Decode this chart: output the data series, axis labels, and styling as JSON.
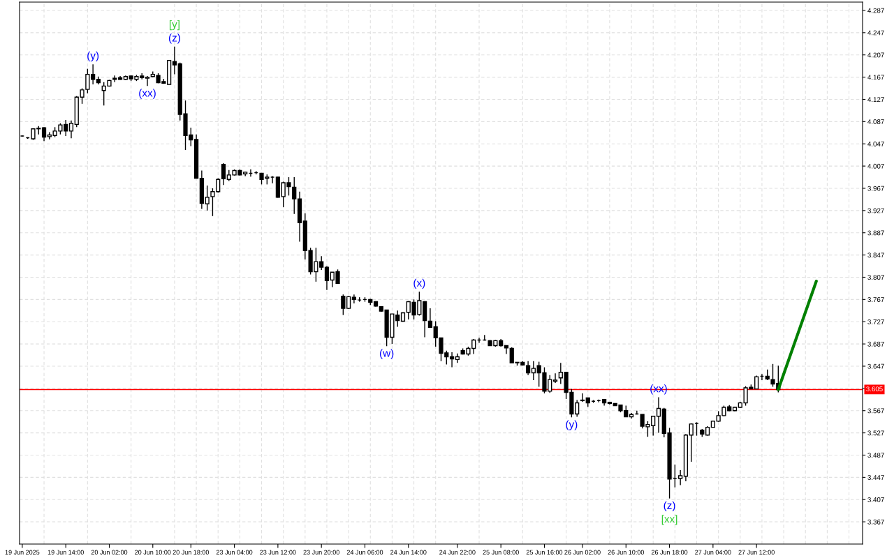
{
  "chart_data": {
    "type": "candlestick",
    "categories": [
      "19 Jun 2025",
      null,
      null,
      null,
      null,
      null,
      null,
      null,
      "19 Jun 14:00",
      null,
      null,
      null,
      null,
      null,
      null,
      null,
      "20 Jun 02:00",
      null,
      null,
      null,
      null,
      null,
      null,
      null,
      "20 Jun 10:00",
      null,
      null,
      null,
      null,
      null,
      null,
      "20 Jun 18:00",
      null,
      null,
      null,
      null,
      null,
      null,
      null,
      "23 Jun 04:00",
      null,
      null,
      null,
      null,
      null,
      null,
      null,
      "23 Jun 12:00",
      null,
      null,
      null,
      null,
      null,
      null,
      null,
      "23 Jun 20:00",
      null,
      null,
      null,
      null,
      null,
      null,
      null,
      "24 Jun 06:00",
      null,
      null,
      null,
      null,
      null,
      null,
      null,
      "24 Jun 14:00",
      null,
      null,
      null,
      null,
      null,
      null,
      null,
      null,
      "24 Jun 22:00",
      null,
      null,
      null,
      null,
      null,
      null,
      null,
      "25 Jun 08:00",
      null,
      null,
      null,
      null,
      null,
      null,
      null,
      "25 Jun 16:00",
      null,
      null,
      null,
      null,
      null,
      null,
      "26 Jun 02:00",
      null,
      null,
      null,
      null,
      null,
      null,
      null,
      "26 Jun 10:00",
      null,
      null,
      null,
      null,
      null,
      null,
      null,
      "26 Jun 18:00",
      null,
      null,
      null,
      null,
      null,
      null,
      null,
      "27 Jun 04:00",
      null,
      null,
      null,
      null,
      null,
      null,
      null,
      "27 Jun 12:00",
      null,
      null,
      null,
      null,
      null,
      null,
      null,
      null,
      null,
      null,
      null,
      null,
      null,
      null,
      null,
      null,
      null,
      null,
      null
    ],
    "ohlc": [
      [
        4.061,
        4.062,
        4.06,
        4.061
      ],
      [
        4.058,
        4.059,
        4.056,
        4.058
      ],
      [
        4.056,
        4.075,
        4.054,
        4.074
      ],
      [
        4.075,
        4.079,
        4.064,
        4.074
      ],
      [
        4.076,
        4.077,
        4.052,
        4.059
      ],
      [
        4.06,
        4.068,
        4.055,
        4.063
      ],
      [
        4.062,
        4.077,
        4.059,
        4.07
      ],
      [
        4.07,
        4.084,
        4.064,
        4.081
      ],
      [
        4.082,
        4.09,
        4.061,
        4.07
      ],
      [
        4.07,
        4.089,
        4.057,
        4.084
      ],
      [
        4.082,
        4.133,
        4.077,
        4.131
      ],
      [
        4.131,
        4.147,
        4.119,
        4.144
      ],
      [
        4.145,
        4.182,
        4.138,
        4.172
      ],
      [
        4.172,
        4.19,
        4.154,
        4.163
      ],
      [
        4.163,
        4.168,
        4.154,
        4.157
      ],
      [
        4.143,
        4.158,
        4.116,
        4.151
      ],
      [
        4.151,
        4.162,
        4.15,
        4.161
      ],
      [
        4.165,
        4.17,
        4.158,
        4.163
      ],
      [
        4.166,
        4.169,
        4.162,
        4.163
      ],
      [
        4.163,
        4.17,
        4.162,
        4.168
      ],
      [
        4.169,
        4.17,
        4.16,
        4.164
      ],
      [
        4.163,
        4.171,
        4.16,
        4.168
      ],
      [
        4.169,
        4.174,
        4.163,
        4.166
      ],
      [
        4.165,
        4.169,
        4.151,
        4.167
      ],
      [
        4.168,
        4.177,
        4.167,
        4.172
      ],
      [
        4.17,
        4.174,
        4.156,
        4.157
      ],
      [
        4.159,
        4.164,
        4.155,
        4.156
      ],
      [
        4.154,
        4.198,
        4.154,
        4.197
      ],
      [
        4.195,
        4.222,
        4.172,
        4.189
      ],
      [
        4.191,
        4.193,
        4.089,
        4.1
      ],
      [
        4.101,
        4.125,
        4.036,
        4.062
      ],
      [
        4.063,
        4.076,
        4.043,
        4.054
      ],
      [
        4.055,
        4.064,
        3.985,
        3.985
      ],
      [
        3.985,
        3.999,
        3.93,
        3.94
      ],
      [
        3.939,
        3.972,
        3.927,
        3.951
      ],
      [
        3.952,
        3.967,
        3.917,
        3.961
      ],
      [
        3.961,
        3.985,
        3.959,
        3.983
      ],
      [
        4.01,
        4.012,
        3.973,
        3.984
      ],
      [
        3.983,
        4.0,
        3.98,
        3.991
      ],
      [
        3.991,
        4.001,
        3.99,
        3.999
      ],
      [
        3.999,
        4.001,
        3.99,
        3.991
      ],
      [
        3.993,
        3.997,
        3.989,
        3.996
      ],
      [
        3.994,
        4.001,
        3.988,
        3.994
      ],
      [
        3.995,
        3.998,
        3.992,
        3.995
      ],
      [
        3.994,
        3.994,
        3.974,
        3.983
      ],
      [
        3.985,
        3.992,
        3.974,
        3.987
      ],
      [
        3.987,
        3.989,
        3.976,
        3.987
      ],
      [
        3.987,
        3.988,
        3.95,
        3.951
      ],
      [
        3.952,
        3.979,
        3.933,
        3.977
      ],
      [
        3.977,
        3.987,
        3.954,
        3.97
      ],
      [
        3.969,
        3.987,
        3.921,
        3.948
      ],
      [
        3.948,
        3.961,
        3.871,
        3.905
      ],
      [
        3.908,
        3.922,
        3.839,
        3.855
      ],
      [
        3.855,
        3.86,
        3.812,
        3.817
      ],
      [
        3.817,
        3.86,
        3.799,
        3.835
      ],
      [
        3.835,
        3.845,
        3.82,
        3.825
      ],
      [
        3.825,
        3.827,
        3.784,
        3.801
      ],
      [
        3.802,
        3.816,
        3.789,
        3.816
      ],
      [
        3.817,
        3.821,
        3.795,
        3.796
      ],
      [
        3.773,
        3.776,
        3.739,
        3.751
      ],
      [
        3.751,
        3.773,
        3.75,
        3.772
      ],
      [
        3.771,
        3.776,
        3.76,
        3.767
      ],
      [
        3.766,
        3.771,
        3.763,
        3.766
      ],
      [
        3.767,
        3.771,
        3.763,
        3.767
      ],
      [
        3.767,
        3.768,
        3.757,
        3.762
      ],
      [
        3.763,
        3.764,
        3.754,
        3.755
      ],
      [
        3.754,
        3.755,
        3.745,
        3.746
      ],
      [
        3.748,
        3.748,
        3.683,
        3.699
      ],
      [
        3.699,
        3.741,
        3.687,
        3.741
      ],
      [
        3.739,
        3.747,
        3.718,
        3.729
      ],
      [
        3.728,
        3.744,
        3.727,
        3.743
      ],
      [
        3.744,
        3.764,
        3.731,
        3.763
      ],
      [
        3.762,
        3.767,
        3.731,
        3.739
      ],
      [
        3.74,
        3.781,
        3.738,
        3.765
      ],
      [
        3.763,
        3.764,
        3.699,
        3.729
      ],
      [
        3.728,
        3.751,
        3.717,
        3.717
      ],
      [
        3.718,
        3.728,
        3.682,
        3.698
      ],
      [
        3.698,
        3.698,
        3.656,
        3.67
      ],
      [
        3.671,
        3.675,
        3.65,
        3.664
      ],
      [
        3.664,
        3.672,
        3.645,
        3.66
      ],
      [
        3.659,
        3.67,
        3.653,
        3.664
      ],
      [
        3.675,
        3.679,
        3.668,
        3.669
      ],
      [
        3.669,
        3.682,
        3.666,
        3.679
      ],
      [
        3.679,
        3.696,
        3.669,
        3.694
      ],
      [
        3.694,
        3.698,
        3.689,
        3.694
      ],
      [
        3.694,
        3.703,
        3.693,
        3.694
      ],
      [
        3.693,
        3.694,
        3.684,
        3.684
      ],
      [
        3.684,
        3.694,
        3.682,
        3.693
      ],
      [
        3.693,
        3.696,
        3.682,
        3.684
      ],
      [
        3.684,
        3.684,
        3.669,
        3.68
      ],
      [
        3.679,
        3.681,
        3.652,
        3.653
      ],
      [
        3.654,
        3.654,
        3.648,
        3.653
      ],
      [
        3.654,
        3.656,
        3.648,
        3.649
      ],
      [
        3.648,
        3.656,
        3.631,
        3.635
      ],
      [
        3.635,
        3.656,
        3.622,
        3.643
      ],
      [
        3.648,
        3.655,
        3.61,
        3.635
      ],
      [
        3.635,
        3.645,
        3.598,
        3.602
      ],
      [
        3.602,
        3.631,
        3.599,
        3.623
      ],
      [
        3.62,
        3.634,
        3.617,
        3.622
      ],
      [
        3.626,
        3.653,
        3.615,
        3.636
      ],
      [
        3.636,
        3.637,
        3.588,
        3.6
      ],
      [
        3.6,
        3.606,
        3.555,
        3.561
      ],
      [
        3.561,
        3.586,
        3.556,
        3.581
      ],
      [
        3.585,
        3.598,
        3.583,
        3.586
      ],
      [
        3.59,
        3.59,
        3.574,
        3.581
      ],
      [
        3.584,
        3.586,
        3.581,
        3.584
      ],
      [
        3.585,
        3.587,
        3.582,
        3.585
      ],
      [
        3.587,
        3.587,
        3.576,
        3.581
      ],
      [
        3.582,
        3.582,
        3.578,
        3.58
      ],
      [
        3.58,
        3.58,
        3.576,
        3.576
      ],
      [
        3.577,
        3.577,
        3.564,
        3.567
      ],
      [
        3.567,
        3.576,
        3.556,
        3.556
      ],
      [
        3.556,
        3.563,
        3.553,
        3.56
      ],
      [
        3.561,
        3.567,
        3.56,
        3.561
      ],
      [
        3.56,
        3.56,
        3.535,
        3.539
      ],
      [
        3.538,
        3.548,
        3.52,
        3.542
      ],
      [
        3.54,
        3.558,
        3.522,
        3.557
      ],
      [
        3.557,
        3.591,
        3.527,
        3.571
      ],
      [
        3.57,
        3.572,
        3.519,
        3.526
      ],
      [
        3.527,
        3.536,
        3.409,
        3.444
      ],
      [
        3.445,
        3.47,
        3.429,
        3.445
      ],
      [
        3.445,
        3.46,
        3.433,
        3.45
      ],
      [
        3.449,
        3.525,
        3.44,
        3.523
      ],
      [
        3.523,
        3.544,
        3.475,
        3.543
      ],
      [
        3.544,
        3.546,
        3.522,
        3.544
      ],
      [
        3.532,
        3.534,
        3.52,
        3.525
      ],
      [
        3.523,
        3.539,
        3.522,
        3.537
      ],
      [
        3.537,
        3.549,
        3.537,
        3.548
      ],
      [
        3.548,
        3.566,
        3.547,
        3.558
      ],
      [
        3.558,
        3.576,
        3.557,
        3.573
      ],
      [
        3.574,
        3.577,
        3.566,
        3.567
      ],
      [
        3.567,
        3.574,
        3.566,
        3.573
      ],
      [
        3.573,
        3.583,
        3.572,
        3.581
      ],
      [
        3.581,
        3.611,
        3.576,
        3.608
      ],
      [
        3.609,
        3.614,
        3.606,
        3.606
      ],
      [
        3.606,
        3.63,
        3.606,
        3.628
      ],
      [
        3.629,
        3.633,
        3.622,
        3.629
      ],
      [
        3.629,
        3.641,
        3.622,
        3.624
      ],
      [
        3.623,
        3.651,
        3.61,
        3.615
      ],
      [
        3.616,
        3.648,
        3.6,
        3.605
      ],
      null,
      null,
      null,
      null,
      null,
      null,
      null,
      null,
      null,
      null,
      null,
      null,
      null,
      null,
      null
    ],
    "series": [
      {
        "type": "line",
        "color": "#008000",
        "values": [
          null,
          null,
          null,
          null,
          null,
          null,
          null,
          null,
          null,
          null,
          null,
          null,
          null,
          null,
          null,
          null,
          null,
          null,
          null,
          null,
          null,
          null,
          null,
          null,
          null,
          null,
          null,
          null,
          null,
          null,
          null,
          null,
          null,
          null,
          null,
          null,
          null,
          null,
          null,
          null,
          null,
          null,
          null,
          null,
          null,
          null,
          null,
          null,
          null,
          null,
          null,
          null,
          null,
          null,
          null,
          null,
          null,
          null,
          null,
          null,
          null,
          null,
          null,
          null,
          null,
          null,
          null,
          null,
          null,
          null,
          null,
          null,
          null,
          null,
          null,
          null,
          null,
          null,
          null,
          null,
          null,
          null,
          null,
          null,
          null,
          null,
          null,
          null,
          null,
          null,
          null,
          null,
          null,
          null,
          null,
          null,
          null,
          null,
          null,
          null,
          null,
          null,
          null,
          null,
          null,
          null,
          null,
          null,
          null,
          null,
          null,
          null,
          null,
          null,
          null,
          null,
          null,
          null,
          null,
          null,
          null,
          null,
          null,
          null,
          null,
          null,
          null,
          null,
          null,
          null,
          null,
          null,
          null,
          null,
          null,
          null,
          null,
          null,
          null,
          3.605,
          null,
          null,
          null,
          null,
          null,
          null,
          3.8,
          null,
          null,
          null,
          null,
          null,
          null,
          null,
          null
        ]
      }
    ],
    "ylim": [
      3.327,
      4.302
    ],
    "yticks": [
      3.367,
      3.407,
      3.447,
      3.487,
      3.527,
      3.567,
      {
        "value": 3.607,
        "label": null
      },
      3.647,
      3.687,
      3.727,
      3.767,
      3.807,
      3.847,
      3.887,
      3.927,
      3.967,
      4.007,
      4.047,
      4.087,
      4.127,
      4.167,
      4.207,
      4.247,
      4.287
    ],
    "grid": true,
    "ref_lines": [
      {
        "axis": "y",
        "value": 3.605,
        "label": "3.605",
        "color": "#ff0000"
      }
    ],
    "annotations": [
      {
        "text": "(y)",
        "y": 4.19
      },
      {
        "text": "(z)",
        "y": 4.222
      },
      {
        "text": "[y]",
        "y": 4.222
      },
      {
        "text": "(xx)",
        "y": 4.151
      },
      {
        "text": "(w)",
        "y": 3.683
      },
      {
        "text": "(x)",
        "y": 3.781
      },
      {
        "text": "(y)",
        "y": 3.555
      },
      {
        "text": "(xx)",
        "y": 3.591
      },
      {
        "text": "(z)",
        "y": 3.409
      },
      {
        "text": "[xx]",
        "y": 3.409
      }
    ]
  }
}
